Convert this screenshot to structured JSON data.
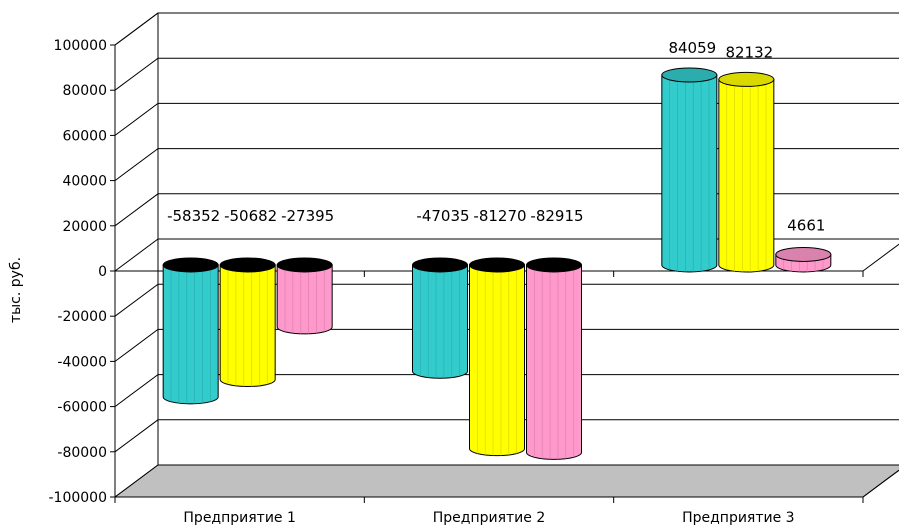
{
  "chart_data": {
    "type": "bar",
    "title": "",
    "xlabel": "",
    "ylabel": "тыс. руб.",
    "categories": [
      "Предприятие 1",
      "Предприятие 2",
      "Предприятие 3"
    ],
    "series": [
      {
        "values": [
          -58352,
          -47035,
          84059
        ],
        "color": "#33cccc"
      },
      {
        "values": [
          -50682,
          -81270,
          82132
        ],
        "color": "#ffff00"
      },
      {
        "values": [
          -27395,
          -82915,
          4661
        ],
        "color": "#ff99cc"
      }
    ],
    "data_labels": [
      [
        "-58352",
        "-47035",
        "84059"
      ],
      [
        "-50682",
        "-81270",
        "82132"
      ],
      [
        "-27395",
        "-82915",
        "4661"
      ]
    ],
    "yticks": [
      "100000",
      "80000",
      "60000",
      "40000",
      "20000",
      "0",
      "-20000",
      "-40000",
      "-60000",
      "-80000",
      "-100000"
    ],
    "ylim": [
      -100000,
      100000
    ],
    "grid": true,
    "legend": "none",
    "floor_color": "#c0c0c0"
  }
}
